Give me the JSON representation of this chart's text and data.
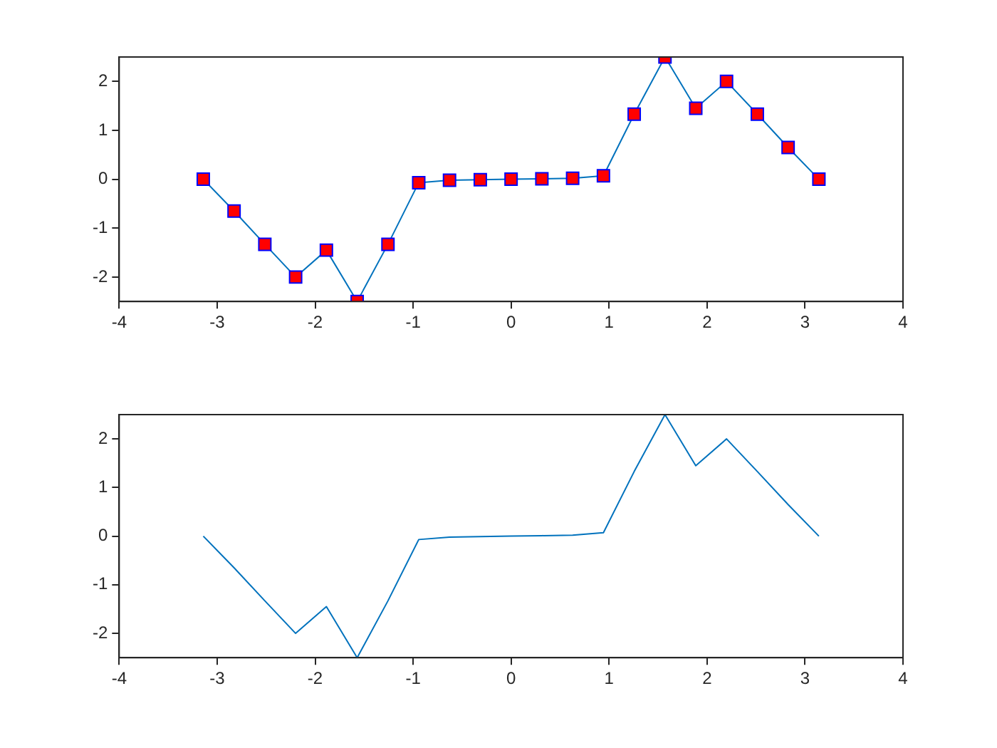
{
  "chart_data": [
    {
      "type": "line",
      "marker": "square",
      "line_style": "solid",
      "grid": false,
      "legend": false,
      "x": [
        -3.1416,
        -2.8274,
        -2.5133,
        -2.1991,
        -1.885,
        -1.5708,
        -1.2566,
        -0.9425,
        -0.6283,
        -0.3142,
        0,
        0.3142,
        0.6283,
        0.9425,
        1.2566,
        1.5708,
        1.885,
        2.1991,
        2.5133,
        2.8274,
        3.1416
      ],
      "series": [
        {
          "color": "#0072bd",
          "colors": [
            "#ff0000",
            "#ff0000",
            "#ff0000",
            "#ff0000",
            "#ff0000",
            "#ff0000",
            "#ff0000",
            "#ff0000",
            "#ff0000",
            "#ff0000",
            "#ff0000",
            "#ff0000",
            "#ff0000",
            "#ff0000",
            "#ff0000",
            "#ff0000",
            "#ff0000",
            "#ff0000",
            "#ff0000",
            "#ff0000",
            "#ff0000"
          ],
          "values": [
            0,
            -0.65,
            -1.33,
            -2.0,
            -1.45,
            -2.5,
            -1.33,
            -0.07,
            -0.02,
            -0.01,
            0,
            0.01,
            0.02,
            0.07,
            1.33,
            2.5,
            1.45,
            2.0,
            1.33,
            0.65,
            0
          ]
        }
      ],
      "xlim": [
        -4,
        4
      ],
      "xticks": [
        -4,
        -3,
        -2,
        -1,
        0,
        1,
        2,
        3,
        4
      ],
      "ylim": [
        -2.5,
        2.5
      ],
      "yticks": [
        -2,
        -1,
        0,
        1,
        2
      ]
    },
    {
      "type": "line",
      "marker": "none",
      "line_style": "solid",
      "grid": false,
      "legend": false,
      "x": [
        -3.1416,
        -2.8274,
        -2.5133,
        -2.1991,
        -1.885,
        -1.5708,
        -1.2566,
        -0.9425,
        -0.6283,
        -0.3142,
        0,
        0.3142,
        0.6283,
        0.9425,
        1.2566,
        1.5708,
        1.885,
        2.1991,
        2.5133,
        2.8274,
        3.1416
      ],
      "series": [
        {
          "color": "#0072bd",
          "values": [
            0,
            -0.65,
            -1.33,
            -2.0,
            -1.45,
            -2.5,
            -1.33,
            -0.07,
            -0.02,
            -0.01,
            0,
            0.01,
            0.02,
            0.07,
            1.33,
            2.5,
            1.45,
            2.0,
            1.33,
            0.65,
            0
          ]
        }
      ],
      "xlim": [
        -4,
        4
      ],
      "xticks": [
        -4,
        -3,
        -2,
        -1,
        0,
        1,
        2,
        3,
        4
      ],
      "ylim": [
        -2.5,
        2.5
      ],
      "yticks": [
        -2,
        -1,
        0,
        1,
        2
      ]
    }
  ]
}
